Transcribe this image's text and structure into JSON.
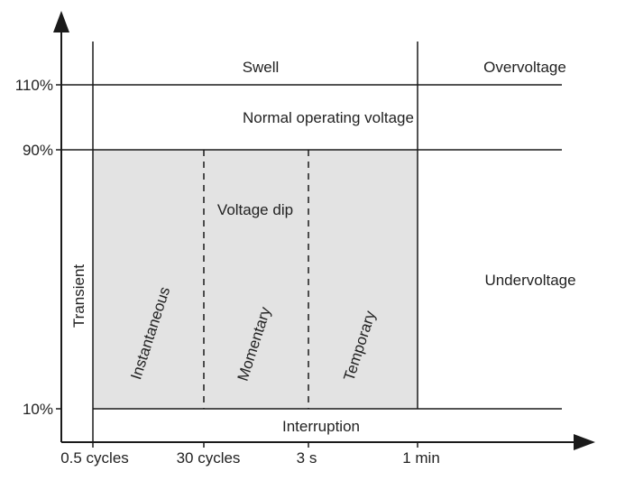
{
  "colors": {
    "line": "#1a1a1a",
    "shade": "#e3e3e3",
    "text": "#222222",
    "background": "#ffffff"
  },
  "y_axis": {
    "ticks": [
      "110%",
      "90%",
      "10%"
    ]
  },
  "x_axis": {
    "ticks": [
      "0.5 cycles",
      "30 cycles",
      "3 s",
      "1 min"
    ]
  },
  "regions": {
    "swell": "Swell",
    "overvoltage": "Overvoltage",
    "normal": "Normal operating voltage",
    "voltage_dip": "Voltage dip",
    "undervoltage": "Undervoltage",
    "interruption": "Interruption",
    "transient": "Transient",
    "instantaneous": "Instantaneous",
    "momentary": "Momentary",
    "temporary": "Temporary"
  }
}
